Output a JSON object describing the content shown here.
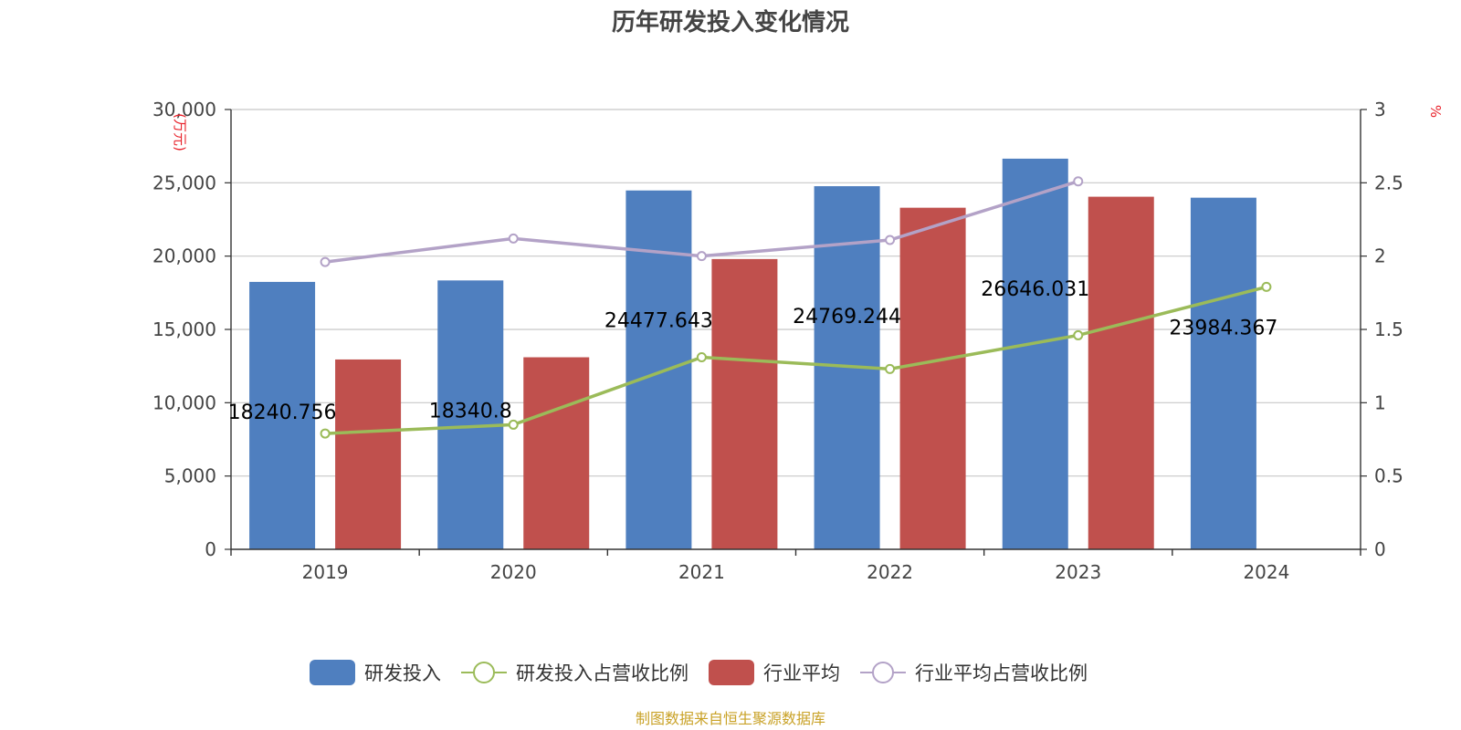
{
  "chart_data": {
    "type": "bar",
    "title": "历年研发投入变化情况",
    "categories": [
      "2019",
      "2020",
      "2021",
      "2022",
      "2023",
      "2024"
    ],
    "y_left": {
      "unit_label": "(万元)",
      "ylim": [
        0,
        30000
      ],
      "ticks": [
        "0",
        "5,000",
        "10,000",
        "15,000",
        "20,000",
        "25,000",
        "30,000"
      ]
    },
    "y_right": {
      "unit_label": "%",
      "ylim": [
        0,
        3
      ],
      "ticks": [
        "0",
        "0.5",
        "1",
        "1.5",
        "2",
        "2.5",
        "3"
      ]
    },
    "grid": true,
    "legend_position": "bottom",
    "series": [
      {
        "name": "研发投入",
        "kind": "bar",
        "axis": "left",
        "color": "#4f7fbf",
        "values": [
          18240.756,
          18340.8,
          24477.643,
          24769.244,
          26646.031,
          23984.367
        ],
        "data_labels": [
          "18240.756",
          "18340.8",
          "24477.643",
          "24769.244",
          "26646.031",
          "23984.367"
        ]
      },
      {
        "name": "研发投入占营收比例",
        "kind": "line",
        "axis": "right",
        "color": "#9bbb59",
        "values": [
          0.79,
          0.85,
          1.31,
          1.23,
          1.46,
          1.79
        ]
      },
      {
        "name": "行业平均",
        "kind": "bar",
        "axis": "left",
        "color": "#c0504d",
        "values": [
          12950,
          13100,
          19800,
          23300,
          24050,
          null
        ]
      },
      {
        "name": "行业平均占营收比例",
        "kind": "line",
        "axis": "right",
        "color": "#b3a2c7",
        "values": [
          1.96,
          2.12,
          2.0,
          2.11,
          2.51,
          null
        ]
      }
    ],
    "source": "制图数据来自恒生聚源数据库"
  },
  "colors": {
    "axis_unit": "#e8212a",
    "source_text": "#c9a227",
    "grid": "#c8c8c8",
    "axis": "#333333"
  }
}
